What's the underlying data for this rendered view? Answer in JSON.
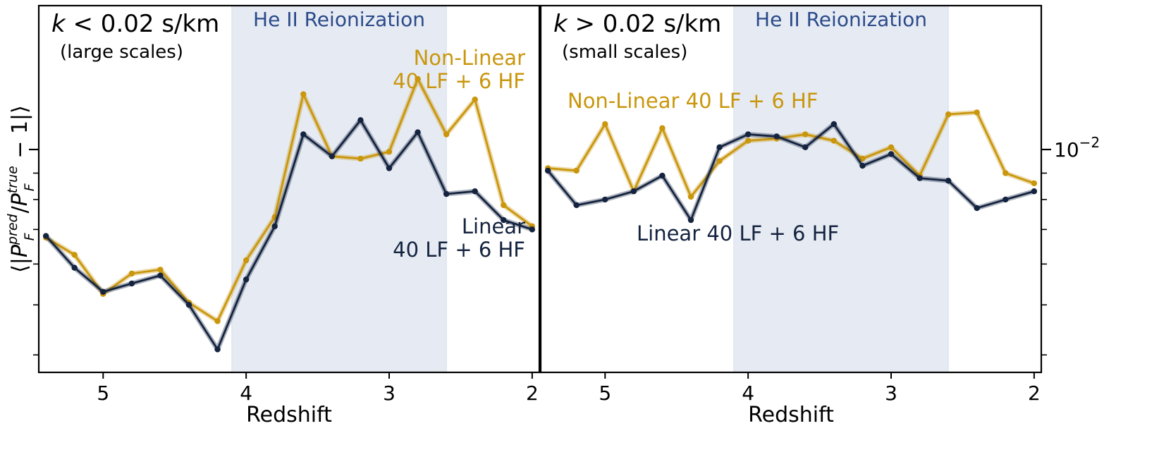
{
  "chart_data": [
    {
      "type": "line",
      "title": "k < 0.02 s/km",
      "title_parts": {
        "var": "k",
        "rest": " < 0.02 s/km"
      },
      "subtitle": "(large scales)",
      "xlabel": "Redshift",
      "ylabel": "⟨|P_F^pred/P_F^true − 1|⟩",
      "ylabel_parts": {
        "open": "⟨|",
        "P": "P",
        "F": "F",
        "pred": "pred",
        "slash": "/",
        "true": "true",
        "close": " − 1|⟩"
      },
      "xlim": [
        5.45,
        1.95
      ],
      "xticks": [
        5,
        4,
        3,
        2
      ],
      "xtick_labels": [
        "5",
        "4",
        "3",
        "2"
      ],
      "ylog": true,
      "ylim": [
        0.0037,
        0.019
      ],
      "yticks_minor": [
        0.004,
        0.005,
        0.006,
        0.007,
        0.008,
        0.009,
        0.01,
        0.02
      ],
      "yticks_major": [
        0.01
      ],
      "ytick_labels": [],
      "band": {
        "x_start": 4.1,
        "x_end": 2.6,
        "label": "He II Reionization",
        "color": "#e6ebf3",
        "label_color": "#2b4a8a"
      },
      "x": [
        5.4,
        5.2,
        5.0,
        4.8,
        4.6,
        4.4,
        4.2,
        4.0,
        3.8,
        3.6,
        3.4,
        3.2,
        3.0,
        2.8,
        2.6,
        2.4,
        2.2,
        2.0
      ],
      "series": [
        {
          "name": "Non-Linear 40 LF + 6 HF",
          "name_lines": [
            "Non-Linear",
            " 40 LF + 6 HF"
          ],
          "color": "#c9960c",
          "values": [
            0.00675,
            0.00625,
            0.00525,
            0.00575,
            0.00585,
            0.00505,
            0.00465,
            0.0061,
            0.0074,
            0.0128,
            0.0097,
            0.0096,
            0.0099,
            0.0137,
            0.0107,
            0.0125,
            0.0078,
            0.0071
          ]
        },
        {
          "name": "Linear 40 LF + 6 HF",
          "name_lines": [
            "Linear",
            " 40 LF + 6 HF"
          ],
          "color": "#14233f",
          "values": [
            0.0068,
            0.0059,
            0.0053,
            0.0055,
            0.0057,
            0.005,
            0.0041,
            0.0056,
            0.0071,
            0.0107,
            0.0097,
            0.0114,
            0.0092,
            0.0108,
            0.0082,
            0.0083,
            0.0073,
            0.007
          ]
        }
      ]
    },
    {
      "type": "line",
      "title": "k > 0.02 s/km",
      "title_parts": {
        "var": "k",
        "rest": " > 0.02 s/km"
      },
      "subtitle": "(small scales)",
      "xlabel": "Redshift",
      "xlim": [
        5.45,
        1.95
      ],
      "xticks": [
        5,
        4,
        3,
        2
      ],
      "xtick_labels": [
        "5",
        "4",
        "3",
        "2"
      ],
      "ylog": true,
      "ylim": [
        0.0037,
        0.019
      ],
      "yticks_minor": [
        0.004,
        0.005,
        0.006,
        0.007,
        0.008,
        0.009,
        0.01,
        0.02
      ],
      "yticks_major": [
        0.01
      ],
      "ytick_labels": [
        {
          "value": 0.01,
          "base": "10",
          "exp": "−2"
        }
      ],
      "band": {
        "x_start": 4.1,
        "x_end": 2.6,
        "label": "He II Reionization",
        "color": "#e6ebf3",
        "label_color": "#2b4a8a"
      },
      "x": [
        5.4,
        5.2,
        5.0,
        4.8,
        4.6,
        4.4,
        4.2,
        4.0,
        3.8,
        3.6,
        3.4,
        3.2,
        3.0,
        2.8,
        2.6,
        2.4,
        2.2,
        2.0
      ],
      "series": [
        {
          "name": "Non-Linear 40 LF + 6 HF",
          "name_lines": [
            "Non-Linear 40 LF + 6 HF"
          ],
          "color": "#c9960c",
          "values": [
            0.0092,
            0.0091,
            0.0112,
            0.0083,
            0.011,
            0.0081,
            0.0095,
            0.0104,
            0.0105,
            0.0107,
            0.0104,
            0.0096,
            0.0101,
            0.0089,
            0.0117,
            0.0118,
            0.009,
            0.0086
          ]
        },
        {
          "name": "Linear 40 LF + 6 HF",
          "name_lines": [
            "Linear 40 LF + 6 HF"
          ],
          "color": "#14233f",
          "values": [
            0.0091,
            0.0078,
            0.008,
            0.0083,
            0.0089,
            0.0073,
            0.0101,
            0.0107,
            0.0106,
            0.0101,
            0.0112,
            0.0093,
            0.0098,
            0.0088,
            0.0087,
            0.0077,
            0.008,
            0.0083
          ]
        }
      ]
    }
  ]
}
